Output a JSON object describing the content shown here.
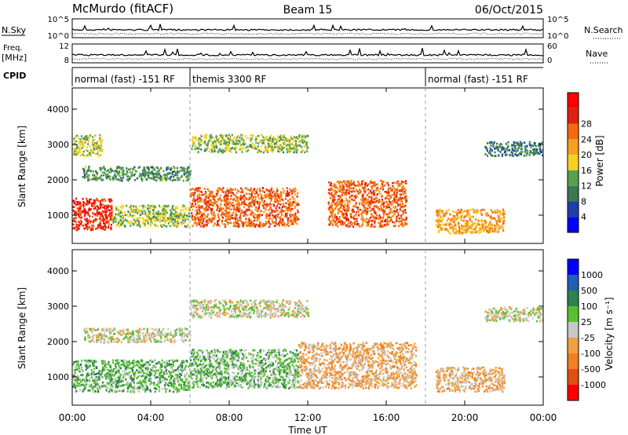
{
  "header": {
    "station": "McMurdo (fitACF)",
    "beam": "Beam 15",
    "date": "06/Oct/2015"
  },
  "strips": {
    "nsky_label": "N.Sky",
    "nsearch_label": "N.Search",
    "freq_label_1": "Freq.",
    "freq_label_2": "[MHz]",
    "nave_label": "Nave",
    "cpid_label": "CPID",
    "nsky_ticks": [
      "10^5",
      "10^0"
    ],
    "nsearch_ticks": [
      "10^5",
      "10^0"
    ],
    "freq_ticks": [
      "12",
      "8"
    ],
    "nave_ticks": [
      "60",
      "0"
    ],
    "cpid_segments": [
      {
        "start": 0,
        "end": 6,
        "label": "normal (fast) -151 RF"
      },
      {
        "start": 6,
        "end": 18,
        "label": "themis 3300 RF"
      },
      {
        "start": 18,
        "end": 24,
        "label": "normal (fast) -151 RF"
      }
    ]
  },
  "colors": {
    "power": [
      "#0000ff",
      "#1f3fa8",
      "#3a7a52",
      "#56a050",
      "#f5d020",
      "#f5a020",
      "#f56a10",
      "#e02010",
      "#ff0000"
    ],
    "velocity": [
      "#ff0000",
      "#e05010",
      "#f08020",
      "#f0a040",
      "#c8c8c8",
      "#58c030",
      "#308050",
      "#2060b0",
      "#0000ff"
    ]
  },
  "chart_data": [
    {
      "type": "heatmap",
      "name": "power",
      "ylabel": "Slant Range [km]",
      "yticks": [
        "1000",
        "2000",
        "3000",
        "4000"
      ],
      "ylim": [
        200,
        4600
      ],
      "xlim": [
        0,
        24
      ],
      "colorbar_label": "Power [dB]",
      "colorbar_ticks": [
        "4",
        "8",
        "12",
        "16",
        "20",
        "24",
        "28"
      ],
      "colorbar_range": [
        0,
        30
      ],
      "regions": [
        {
          "t0": 0.0,
          "t1": 2.0,
          "r0": 600,
          "r1": 1500,
          "v": 25
        },
        {
          "t0": 0.0,
          "t1": 1.5,
          "r0": 2700,
          "r1": 3300,
          "v": 14
        },
        {
          "t0": 0.5,
          "t1": 6.0,
          "r0": 2000,
          "r1": 2400,
          "v": 10
        },
        {
          "t0": 2.0,
          "t1": 6.0,
          "r0": 700,
          "r1": 1300,
          "v": 13
        },
        {
          "t0": 6.0,
          "t1": 11.5,
          "r0": 700,
          "r1": 1800,
          "v": 22
        },
        {
          "t0": 6.0,
          "t1": 12.0,
          "r0": 2800,
          "r1": 3300,
          "v": 13
        },
        {
          "t0": 13.0,
          "t1": 17.0,
          "r0": 700,
          "r1": 2000,
          "v": 22
        },
        {
          "t0": 18.5,
          "t1": 22.0,
          "r0": 500,
          "r1": 1200,
          "v": 18
        },
        {
          "t0": 21.0,
          "t1": 24.0,
          "r0": 2700,
          "r1": 3100,
          "v": 8
        }
      ]
    },
    {
      "type": "heatmap",
      "name": "velocity",
      "ylabel": "Slant Range [km]",
      "xlabel": "Time UT",
      "yticks": [
        "1000",
        "2000",
        "3000",
        "4000"
      ],
      "xticks": [
        "00:00",
        "04:00",
        "08:00",
        "12:00",
        "16:00",
        "20:00",
        "00:00"
      ],
      "ylim": [
        200,
        4600
      ],
      "xlim": [
        0,
        24
      ],
      "colorbar_label": "Velocity [m s⁻¹]",
      "colorbar_ticks": [
        "1000",
        "500",
        "100",
        "25",
        "-25",
        "-100",
        "-500",
        "-1000"
      ],
      "colorbar_range": [
        -1200,
        1200
      ],
      "regions": [
        {
          "t0": 0.0,
          "t1": 6.0,
          "r0": 600,
          "r1": 1500,
          "v": 300
        },
        {
          "t0": 0.5,
          "t1": 6.0,
          "r0": 2000,
          "r1": 2400,
          "v": 0
        },
        {
          "t0": 6.0,
          "t1": 11.5,
          "r0": 700,
          "r1": 1800,
          "v": 250
        },
        {
          "t0": 6.0,
          "t1": 12.0,
          "r0": 2700,
          "r1": 3200,
          "v": 0
        },
        {
          "t0": 11.5,
          "t1": 17.5,
          "r0": 700,
          "r1": 2000,
          "v": -250
        },
        {
          "t0": 18.5,
          "t1": 22.0,
          "r0": 600,
          "r1": 1300,
          "v": -250
        },
        {
          "t0": 21.0,
          "t1": 24.0,
          "r0": 2600,
          "r1": 3000,
          "v": 0
        }
      ]
    }
  ]
}
